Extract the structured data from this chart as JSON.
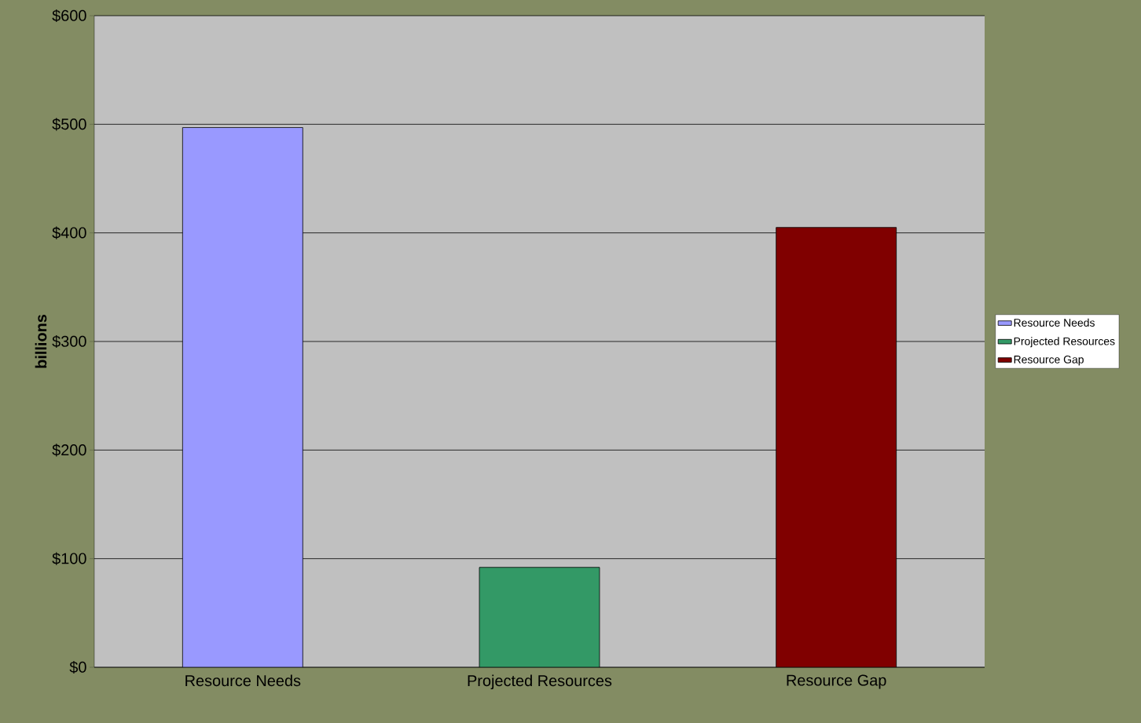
{
  "chart_data": {
    "type": "bar",
    "ylabel": "billions",
    "categories": [
      "Resource Needs",
      "Projected Resources",
      "Resource Gap"
    ],
    "series": [
      {
        "name": "Resource Needs",
        "color": "#9999ff",
        "values": [
          497,
          null,
          null
        ]
      },
      {
        "name": "Projected Resources",
        "color": "#339966",
        "values": [
          null,
          92,
          null
        ]
      },
      {
        "name": "Resource Gap",
        "color": "#800000",
        "values": [
          null,
          null,
          405
        ]
      }
    ],
    "ylim": [
      0,
      600
    ],
    "yticks": [
      {
        "value": 0,
        "label": "$0"
      },
      {
        "value": 100,
        "label": "$100"
      },
      {
        "value": 200,
        "label": "$200"
      },
      {
        "value": 300,
        "label": "$300"
      },
      {
        "value": 400,
        "label": "$400"
      },
      {
        "value": 500,
        "label": "$500"
      },
      {
        "value": 600,
        "label": "$600"
      }
    ],
    "grid": "y",
    "legend": "right"
  }
}
